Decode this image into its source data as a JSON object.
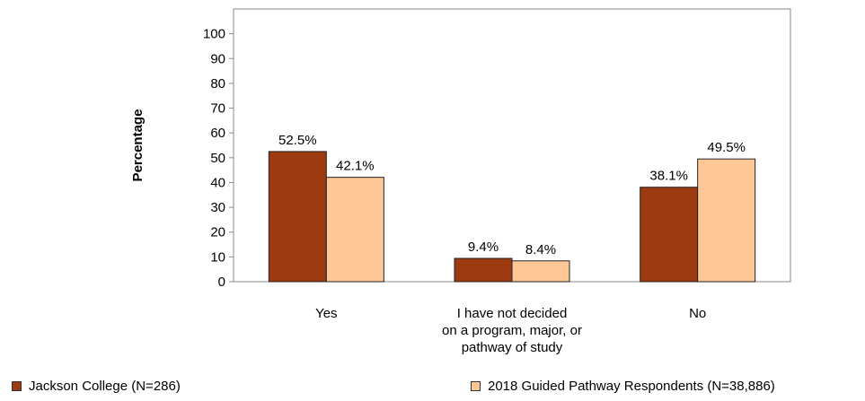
{
  "chart_data": {
    "type": "bar",
    "categories": [
      [
        "Yes"
      ],
      [
        "I have not decided",
        "on a program, major, or",
        "pathway of study"
      ],
      [
        "No"
      ]
    ],
    "series": [
      {
        "name": "Jackson College (N=286)",
        "color": "#9e3a10",
        "values": [
          52.5,
          9.4,
          38.1
        ],
        "labels": [
          "52.5%",
          "9.4%",
          "38.1%"
        ]
      },
      {
        "name": "2018 Guided Pathway Respondents (N=38,886)",
        "color": "#fec896",
        "values": [
          42.1,
          8.4,
          49.5
        ],
        "labels": [
          "42.1%",
          "8.4%",
          "49.5%"
        ]
      }
    ],
    "ylabel": "Percentage",
    "ylim": [
      0,
      110
    ],
    "yticks": [
      0,
      10,
      20,
      30,
      40,
      50,
      60,
      70,
      80,
      90,
      100
    ],
    "grid": false,
    "legend_position": "bottom"
  }
}
